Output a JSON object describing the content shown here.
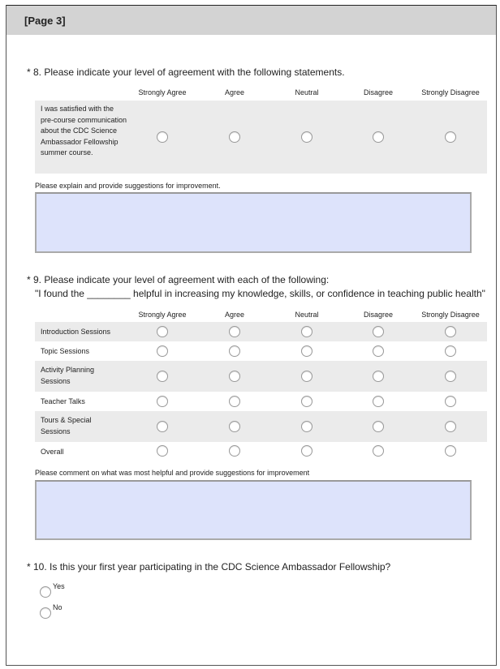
{
  "page_title": "[Page 3]",
  "scale": [
    "Strongly Agree",
    "Agree",
    "Neutral",
    "Disagree",
    "Strongly Disagree"
  ],
  "q8": {
    "title": "* 8. Please indicate your level of agreement with the following statements.",
    "rows": [
      "I was satisfied with the pre-course communication about the CDC Science Ambassador Fellowship summer course."
    ],
    "comment_label": "Please explain and provide suggestions for improvement.",
    "comment_value": ""
  },
  "q9": {
    "title": "* 9. Please indicate your level of agreement with each of the following:",
    "subtitle": "\"I found the ________ helpful in increasing my knowledge, skills, or confidence in teaching public health\"",
    "rows": [
      "Introduction Sessions",
      "Topic Sessions",
      "Activity Planning Sessions",
      "Teacher Talks",
      "Tours & Special Sessions",
      "Overall"
    ],
    "comment_label": "Please comment on what was most helpful and provide suggestions for improvement",
    "comment_value": ""
  },
  "q10": {
    "title": "* 10. Is this your first year participating in the CDC Science Ambassador Fellowship?",
    "options": [
      "Yes",
      "No"
    ]
  }
}
